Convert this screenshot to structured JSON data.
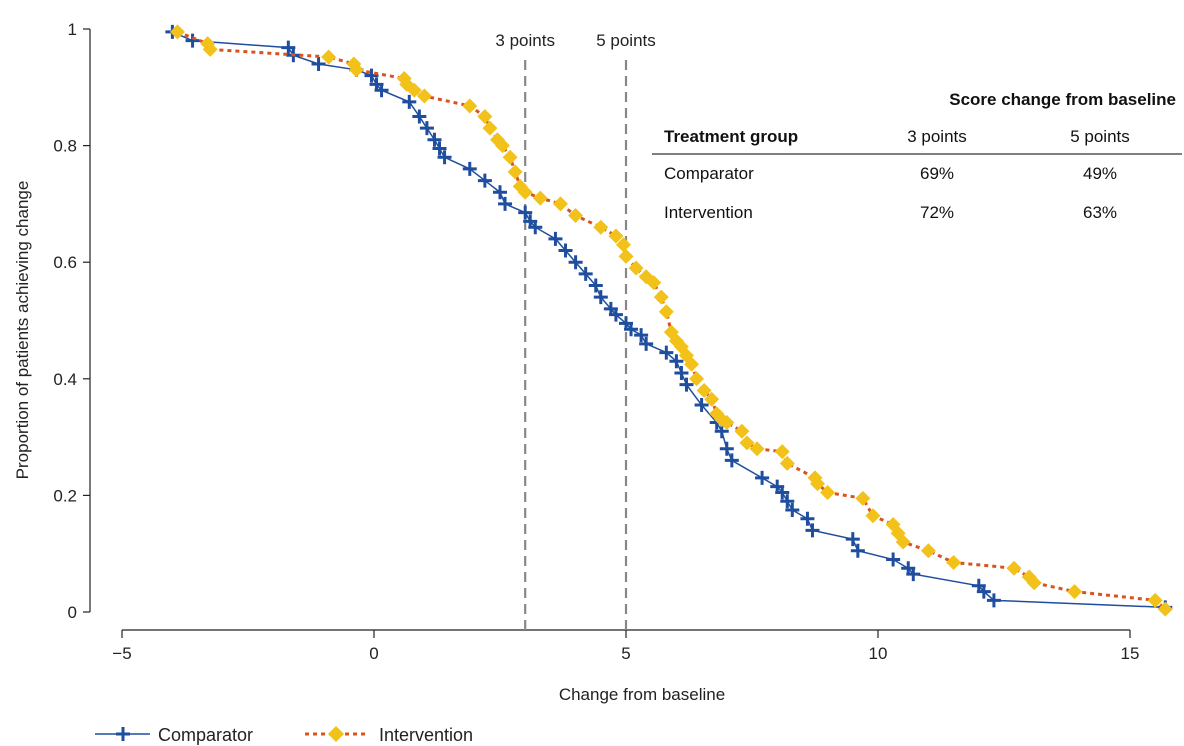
{
  "chart_data": {
    "type": "line",
    "xlabel": "Change from baseline",
    "ylabel": "Proportion of patients achieving change",
    "xlim": [
      -5,
      15.7
    ],
    "ylim": [
      0,
      1
    ],
    "xticks": [
      -5,
      0,
      5,
      10,
      15
    ],
    "yticks": [
      0,
      0.2,
      0.4,
      0.6,
      0.8,
      1
    ],
    "xtick_labels": [
      "−5",
      "0",
      "5",
      "10",
      "15"
    ],
    "ytick_labels": [
      "0",
      "0.2",
      "0.4",
      "0.6",
      "0.8",
      "1"
    ],
    "reference_lines": [
      {
        "x": 3,
        "label": "3 points"
      },
      {
        "x": 5,
        "label": "5 points"
      }
    ],
    "grid": false,
    "legend_position": "bottom",
    "series": [
      {
        "name": "Comparator",
        "color": "#1f4e9e",
        "line_style": "solid",
        "marker": "plus",
        "points": [
          [
            -4.0,
            0.995
          ],
          [
            -3.6,
            0.98
          ],
          [
            -1.7,
            0.968
          ],
          [
            -1.6,
            0.955
          ],
          [
            -1.1,
            0.94
          ],
          [
            -0.35,
            0.93
          ],
          [
            -0.05,
            0.92
          ],
          [
            0.05,
            0.905
          ],
          [
            0.15,
            0.895
          ],
          [
            0.7,
            0.875
          ],
          [
            0.9,
            0.85
          ],
          [
            1.05,
            0.83
          ],
          [
            1.2,
            0.81
          ],
          [
            1.3,
            0.795
          ],
          [
            1.4,
            0.78
          ],
          [
            1.9,
            0.76
          ],
          [
            2.2,
            0.74
          ],
          [
            2.5,
            0.72
          ],
          [
            2.6,
            0.7
          ],
          [
            3.0,
            0.685
          ],
          [
            3.1,
            0.67
          ],
          [
            3.2,
            0.66
          ],
          [
            3.6,
            0.64
          ],
          [
            3.8,
            0.62
          ],
          [
            4.0,
            0.6
          ],
          [
            4.2,
            0.58
          ],
          [
            4.4,
            0.56
          ],
          [
            4.5,
            0.54
          ],
          [
            4.7,
            0.52
          ],
          [
            4.8,
            0.51
          ],
          [
            5.0,
            0.495
          ],
          [
            5.1,
            0.485
          ],
          [
            5.3,
            0.475
          ],
          [
            5.4,
            0.46
          ],
          [
            5.8,
            0.445
          ],
          [
            6.0,
            0.43
          ],
          [
            6.1,
            0.41
          ],
          [
            6.2,
            0.39
          ],
          [
            6.5,
            0.355
          ],
          [
            6.8,
            0.325
          ],
          [
            6.9,
            0.31
          ],
          [
            7.0,
            0.28
          ],
          [
            7.1,
            0.26
          ],
          [
            7.7,
            0.23
          ],
          [
            8.0,
            0.215
          ],
          [
            8.1,
            0.205
          ],
          [
            8.2,
            0.19
          ],
          [
            8.3,
            0.175
          ],
          [
            8.6,
            0.16
          ],
          [
            8.7,
            0.14
          ],
          [
            9.5,
            0.125
          ],
          [
            9.6,
            0.105
          ],
          [
            10.3,
            0.09
          ],
          [
            10.6,
            0.075
          ],
          [
            10.7,
            0.065
          ],
          [
            12.0,
            0.045
          ],
          [
            12.1,
            0.035
          ],
          [
            12.3,
            0.02
          ],
          [
            15.7,
            0.008
          ]
        ]
      },
      {
        "name": "Intervention",
        "color": "#f2c21b",
        "line_color": "#d9531e",
        "line_style": "dotted",
        "marker": "diamond",
        "points": [
          [
            -3.9,
            0.995
          ],
          [
            -3.3,
            0.975
          ],
          [
            -3.25,
            0.965
          ],
          [
            -0.9,
            0.952
          ],
          [
            -0.4,
            0.94
          ],
          [
            -0.35,
            0.93
          ],
          [
            0.6,
            0.915
          ],
          [
            0.65,
            0.905
          ],
          [
            0.8,
            0.895
          ],
          [
            1.0,
            0.885
          ],
          [
            1.9,
            0.868
          ],
          [
            2.2,
            0.85
          ],
          [
            2.3,
            0.83
          ],
          [
            2.45,
            0.81
          ],
          [
            2.55,
            0.8
          ],
          [
            2.7,
            0.78
          ],
          [
            2.8,
            0.755
          ],
          [
            2.9,
            0.73
          ],
          [
            3.0,
            0.72
          ],
          [
            3.3,
            0.71
          ],
          [
            3.7,
            0.7
          ],
          [
            4.0,
            0.68
          ],
          [
            4.5,
            0.66
          ],
          [
            4.8,
            0.645
          ],
          [
            4.95,
            0.63
          ],
          [
            5.0,
            0.61
          ],
          [
            5.2,
            0.59
          ],
          [
            5.4,
            0.575
          ],
          [
            5.55,
            0.565
          ],
          [
            5.7,
            0.54
          ],
          [
            5.8,
            0.515
          ],
          [
            5.9,
            0.48
          ],
          [
            6.0,
            0.465
          ],
          [
            6.1,
            0.455
          ],
          [
            6.2,
            0.44
          ],
          [
            6.3,
            0.425
          ],
          [
            6.4,
            0.4
          ],
          [
            6.55,
            0.38
          ],
          [
            6.7,
            0.365
          ],
          [
            6.8,
            0.34
          ],
          [
            6.9,
            0.33
          ],
          [
            7.0,
            0.325
          ],
          [
            7.3,
            0.31
          ],
          [
            7.4,
            0.29
          ],
          [
            7.6,
            0.28
          ],
          [
            8.1,
            0.275
          ],
          [
            8.2,
            0.255
          ],
          [
            8.75,
            0.23
          ],
          [
            8.8,
            0.22
          ],
          [
            9.0,
            0.205
          ],
          [
            9.7,
            0.195
          ],
          [
            9.9,
            0.165
          ],
          [
            10.3,
            0.15
          ],
          [
            10.4,
            0.135
          ],
          [
            10.5,
            0.12
          ],
          [
            11.0,
            0.105
          ],
          [
            11.5,
            0.085
          ],
          [
            12.7,
            0.075
          ],
          [
            13.0,
            0.06
          ],
          [
            13.1,
            0.05
          ],
          [
            13.9,
            0.035
          ],
          [
            15.5,
            0.02
          ],
          [
            15.7,
            0.005
          ]
        ]
      }
    ]
  },
  "table": {
    "header_group": "Score change from baseline",
    "columns": [
      "Treatment group",
      "3 points",
      "5 points"
    ],
    "rows": [
      [
        "Comparator",
        "69%",
        "49%"
      ],
      [
        "Intervention",
        "72%",
        "63%"
      ]
    ]
  },
  "legend": {
    "items": [
      "Comparator",
      "Intervention"
    ]
  }
}
